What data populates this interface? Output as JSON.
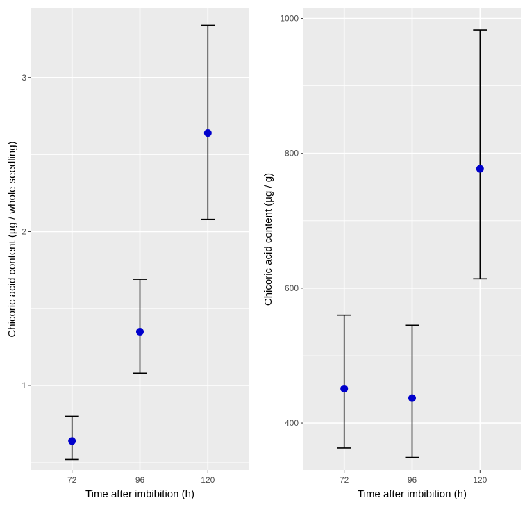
{
  "chart_data": [
    {
      "type": "scatter",
      "title": "",
      "xlabel": "Time after imbibition (h)",
      "ylabel": "Chicoric acid content (µg / whole seedling)",
      "categories": [
        "72",
        "96",
        "120"
      ],
      "x": [
        72,
        96,
        120
      ],
      "values": [
        0.64,
        1.35,
        2.64
      ],
      "error_low": [
        0.52,
        1.08,
        2.08
      ],
      "error_high": [
        0.8,
        1.69,
        3.34
      ],
      "ylim": [
        0.45,
        3.45
      ],
      "yticks": [
        1,
        2,
        3
      ],
      "ytick_labels": [
        "1",
        "2",
        "3"
      ],
      "grid": true,
      "legend": "none",
      "colors": {
        "point": "#0000cc",
        "errorbar": "#000000",
        "panel": "#ebebeb",
        "grid": "#ffffff"
      }
    },
    {
      "type": "scatter",
      "title": "",
      "xlabel": "Time after imbibition (h)",
      "ylabel": "Chicoric acid content (µg / g)",
      "categories": [
        "72",
        "96",
        "120"
      ],
      "x": [
        72,
        96,
        120
      ],
      "values": [
        451,
        437,
        777
      ],
      "error_low": [
        363,
        349,
        614
      ],
      "error_high": [
        560,
        545,
        983
      ],
      "ylim": [
        330,
        1015
      ],
      "yticks": [
        400,
        600,
        800,
        1000
      ],
      "ytick_labels": [
        "400",
        "600",
        "800",
        "1000"
      ],
      "grid": true,
      "legend": "none",
      "colors": {
        "point": "#0000cc",
        "errorbar": "#000000",
        "panel": "#ebebeb",
        "grid": "#ffffff"
      }
    }
  ]
}
